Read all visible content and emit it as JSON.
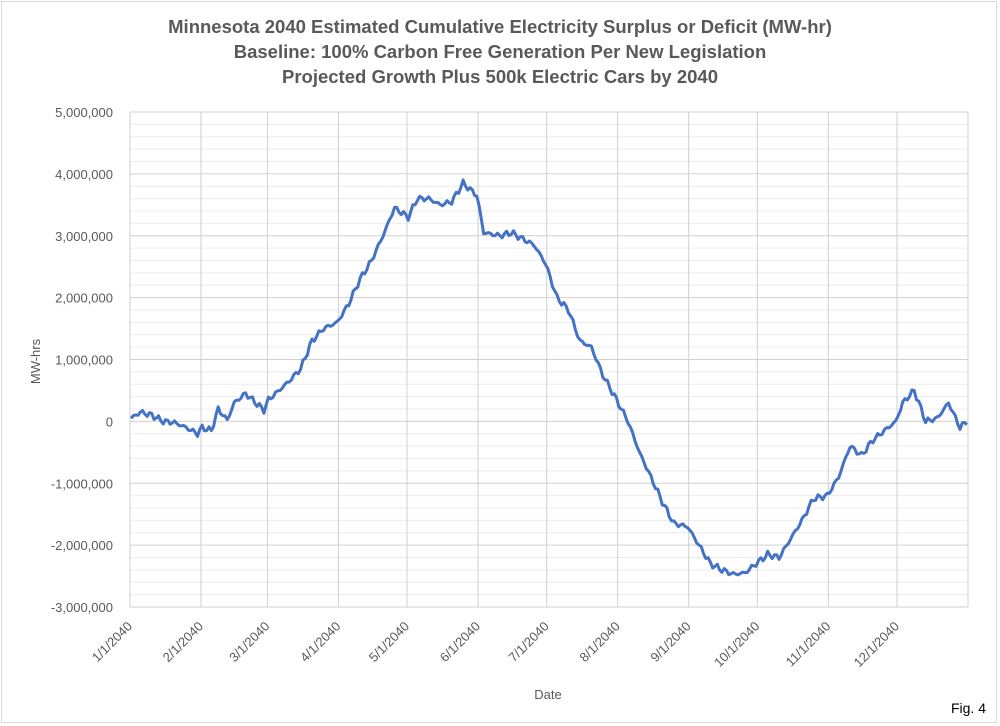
{
  "chart_data": {
    "type": "line",
    "title": [
      "Minnesota 2040 Estimated Cumulative Electricity Surplus or Deficit (MW-hr)",
      "Baseline: 100% Carbon Free Generation Per New Legislation",
      "Projected Growth Plus 500k Electric Cars by 2040"
    ],
    "xlabel": "Date",
    "ylabel": "MW-hrs",
    "ylim": [
      -3000000,
      5000000
    ],
    "ytick_labels": [
      "-3,000,000",
      "-2,000,000",
      "-1,000,000",
      "0",
      "1,000,000",
      "2,000,000",
      "3,000,000",
      "4,000,000",
      "5,000,000"
    ],
    "xlim": [
      "1/1/2040",
      "12/31/2040"
    ],
    "xtick_labels": [
      "1/1/2040",
      "2/1/2040",
      "3/1/2040",
      "4/1/2040",
      "5/1/2040",
      "6/1/2040",
      "7/1/2040",
      "8/1/2040",
      "9/1/2040",
      "10/1/2040",
      "11/1/2040",
      "12/1/2040"
    ],
    "grid": true,
    "series_color": "#4472c4",
    "x": [
      "1/1/2040",
      "1/5/2040",
      "1/10/2040",
      "1/15/2040",
      "1/20/2040",
      "1/25/2040",
      "1/30/2040",
      "2/1/2040",
      "2/5/2040",
      "2/8/2040",
      "2/12/2040",
      "2/15/2040",
      "2/20/2040",
      "2/25/2040",
      "2/28/2040",
      "3/1/2040",
      "3/5/2040",
      "3/10/2040",
      "3/15/2040",
      "3/20/2040",
      "3/25/2040",
      "3/31/2040",
      "4/5/2040",
      "4/10/2040",
      "4/15/2040",
      "4/20/2040",
      "4/25/2040",
      "5/1/2040",
      "5/5/2040",
      "5/10/2040",
      "5/15/2040",
      "5/20/2040",
      "5/25/2040",
      "5/31/2040",
      "6/3/2040",
      "6/10/2040",
      "6/15/2040",
      "6/20/2040",
      "6/25/2040",
      "6/30/2040",
      "7/5/2040",
      "7/10/2040",
      "7/15/2040",
      "7/20/2040",
      "7/25/2040",
      "7/31/2040",
      "8/5/2040",
      "8/10/2040",
      "8/15/2040",
      "8/20/2040",
      "8/25/2040",
      "8/31/2040",
      "9/5/2040",
      "9/10/2040",
      "9/15/2040",
      "9/20/2040",
      "9/25/2040",
      "9/30/2040",
      "10/5/2040",
      "10/10/2040",
      "10/15/2040",
      "10/20/2040",
      "10/25/2040",
      "10/31/2040",
      "11/5/2040",
      "11/10/2040",
      "11/15/2040",
      "11/20/2040",
      "11/25/2040",
      "11/30/2040",
      "12/3/2040",
      "12/8/2040",
      "12/13/2040",
      "12/18/2040",
      "12/23/2040",
      "12/28/2040",
      "12/31/2040"
    ],
    "y": [
      50000,
      150000,
      100000,
      0,
      -20000,
      -100000,
      -200000,
      -100000,
      -150000,
      200000,
      20000,
      300000,
      450000,
      280000,
      180000,
      350000,
      480000,
      650000,
      850000,
      1300000,
      1500000,
      1600000,
      1900000,
      2300000,
      2600000,
      3000000,
      3450000,
      3300000,
      3600000,
      3600000,
      3500000,
      3550000,
      3850000,
      3650000,
      3050000,
      3000000,
      3050000,
      2950000,
      2850000,
      2550000,
      2000000,
      1800000,
      1300000,
      1200000,
      750000,
      350000,
      0,
      -500000,
      -900000,
      -1300000,
      -1650000,
      -1700000,
      -2000000,
      -2300000,
      -2400000,
      -2470000,
      -2450000,
      -2300000,
      -2150000,
      -2200000,
      -1900000,
      -1600000,
      -1250000,
      -1200000,
      -900000,
      -400000,
      -550000,
      -300000,
      -150000,
      0,
      300000,
      500000,
      0,
      50000,
      300000,
      -100000,
      0
    ]
  },
  "figure_label": "Fig. 4"
}
